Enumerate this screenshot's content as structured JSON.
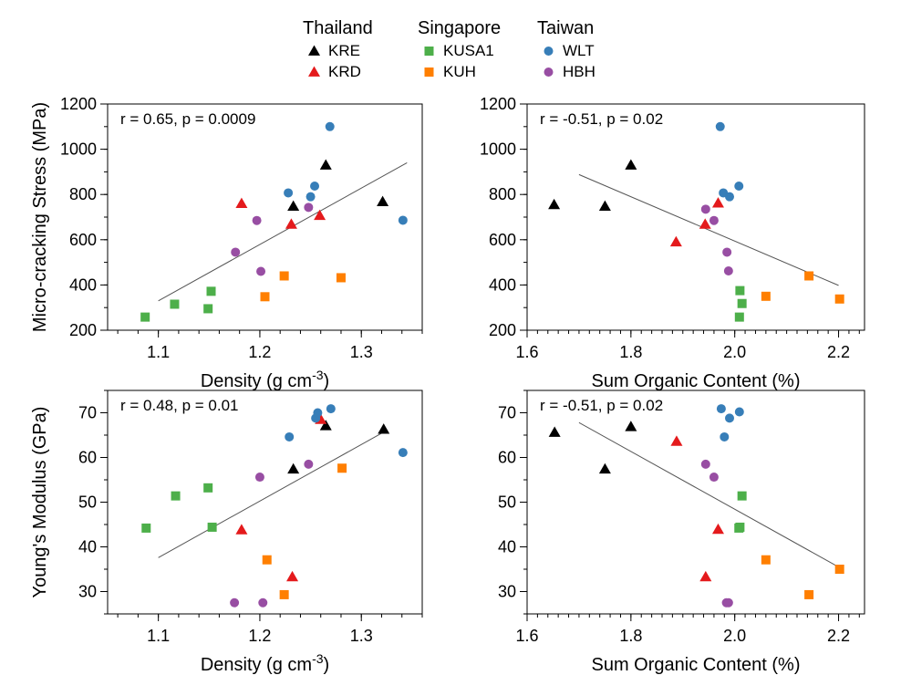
{
  "legend": {
    "groups": [
      {
        "name": "Thailand",
        "items": [
          {
            "label": "KRE",
            "color": "#000000",
            "marker": "triangle"
          },
          {
            "label": "KRD",
            "color": "#e41a1c",
            "marker": "triangle"
          }
        ]
      },
      {
        "name": "Singapore",
        "items": [
          {
            "label": "KUSA1",
            "color": "#4daf4a",
            "marker": "square"
          },
          {
            "label": "KUH",
            "color": "#ff7f00",
            "marker": "square"
          }
        ]
      },
      {
        "name": "Taiwan",
        "items": [
          {
            "label": "WLT",
            "color": "#377eb8",
            "marker": "circle"
          },
          {
            "label": "HBH",
            "color": "#984ea3",
            "marker": "circle"
          }
        ]
      }
    ]
  },
  "chart_data": [
    {
      "type": "scatter",
      "annotation": "r = 0.65, p = 0.0009",
      "xlabel": "Density (g cm-3)",
      "ylabel": "Micro-cracking Stress (MPa)",
      "xlim": [
        1.05,
        1.36
      ],
      "ylim": [
        200,
        1200
      ],
      "xticks": [
        "1.1",
        "1.2",
        "1.3"
      ],
      "yticks": [
        "200",
        "400",
        "600",
        "800",
        "1000",
        "1200"
      ],
      "fit_line": {
        "x": [
          1.1,
          1.345
        ],
        "y": [
          330,
          940
        ]
      },
      "series": [
        {
          "name": "KRE",
          "points": [
            [
              1.233,
              748
            ],
            [
              1.265,
              930
            ],
            [
              1.321,
              768
            ]
          ]
        },
        {
          "name": "KRD",
          "points": [
            [
              1.182,
              760
            ],
            [
              1.231,
              668
            ],
            [
              1.259,
              707
            ]
          ]
        },
        {
          "name": "KUSA1",
          "points": [
            [
              1.087,
              258
            ],
            [
              1.116,
              315
            ],
            [
              1.149,
              295
            ],
            [
              1.152,
              372
            ]
          ]
        },
        {
          "name": "KUH",
          "points": [
            [
              1.205,
              348
            ],
            [
              1.224,
              440
            ],
            [
              1.28,
              432
            ]
          ]
        },
        {
          "name": "WLT",
          "points": [
            [
              1.228,
              807
            ],
            [
              1.25,
              790
            ],
            [
              1.254,
              837
            ],
            [
              1.269,
              1100
            ],
            [
              1.341,
              686
            ]
          ]
        },
        {
          "name": "HBH",
          "points": [
            [
              1.176,
              545
            ],
            [
              1.197,
              685
            ],
            [
              1.201,
              460
            ],
            [
              1.248,
              743
            ]
          ]
        }
      ]
    },
    {
      "type": "scatter",
      "annotation": "r = -0.51, p = 0.02",
      "xlabel": "Sum Organic Content (%)",
      "ylabel": "",
      "xlim": [
        1.6,
        2.25
      ],
      "ylim": [
        200,
        1200
      ],
      "xticks": [
        "1.6",
        "1.8",
        "2.0",
        "2.2"
      ],
      "yticks": [
        "200",
        "400",
        "600",
        "800",
        "1000",
        "1200"
      ],
      "fit_line": {
        "x": [
          1.7,
          2.2
        ],
        "y": [
          888,
          398
        ]
      },
      "series": [
        {
          "name": "KRE",
          "points": [
            [
              1.652,
              755
            ],
            [
              1.75,
              748
            ],
            [
              1.8,
              930
            ]
          ]
        },
        {
          "name": "KRD",
          "points": [
            [
              1.887,
              590
            ],
            [
              1.943,
              668
            ],
            [
              1.968,
              762
            ]
          ]
        },
        {
          "name": "KUSA1",
          "points": [
            [
              2.009,
              258
            ],
            [
              2.01,
              375
            ],
            [
              2.014,
              318
            ]
          ]
        },
        {
          "name": "KUH",
          "points": [
            [
              2.06,
              350
            ],
            [
              2.143,
              440
            ],
            [
              2.202,
              338
            ]
          ]
        },
        {
          "name": "WLT",
          "points": [
            [
              1.972,
              1100
            ],
            [
              1.978,
              807
            ],
            [
              1.99,
              790
            ],
            [
              2.008,
              837
            ]
          ]
        },
        {
          "name": "HBH",
          "points": [
            [
              1.944,
              735
            ],
            [
              1.96,
              685
            ],
            [
              1.985,
              545
            ],
            [
              1.988,
              462
            ]
          ]
        }
      ]
    },
    {
      "type": "scatter",
      "annotation": "r = 0.48, p = 0.01",
      "xlabel": "Density (g cm-3)",
      "ylabel": "Young's Modulus (GPa)",
      "xlim": [
        1.05,
        1.36
      ],
      "ylim": [
        25,
        75
      ],
      "xticks": [
        "1.1",
        "1.2",
        "1.3"
      ],
      "yticks": [
        "30",
        "40",
        "50",
        "60",
        "70"
      ],
      "fit_line": {
        "x": [
          1.1,
          1.323
        ],
        "y": [
          37.6,
          65.8
        ]
      },
      "series": [
        {
          "name": "KRE",
          "points": [
            [
              1.233,
              57.4
            ],
            [
              1.265,
              67.1
            ],
            [
              1.322,
              66.3
            ]
          ]
        },
        {
          "name": "KRD",
          "points": [
            [
              1.182,
              43.8
            ],
            [
              1.232,
              33.3
            ],
            [
              1.26,
              68.5
            ]
          ]
        },
        {
          "name": "KUSA1",
          "points": [
            [
              1.088,
              44.2
            ],
            [
              1.117,
              51.4
            ],
            [
              1.149,
              53.2
            ],
            [
              1.153,
              44.4
            ]
          ]
        },
        {
          "name": "KUH",
          "points": [
            [
              1.207,
              37.1
            ],
            [
              1.224,
              29.3
            ],
            [
              1.281,
              57.6
            ]
          ]
        },
        {
          "name": "WLT",
          "points": [
            [
              1.229,
              64.6
            ],
            [
              1.255,
              68.8
            ],
            [
              1.257,
              70.0
            ],
            [
              1.27,
              70.9
            ],
            [
              1.341,
              61.1
            ]
          ]
        },
        {
          "name": "HBH",
          "points": [
            [
              1.175,
              27.5
            ],
            [
              1.2,
              55.6
            ],
            [
              1.203,
              27.5
            ],
            [
              1.248,
              58.5
            ]
          ]
        }
      ]
    },
    {
      "type": "scatter",
      "annotation": "r = -0.51, p = 0.02",
      "xlabel": "Sum Organic Content (%)",
      "ylabel": "",
      "xlim": [
        1.6,
        2.25
      ],
      "ylim": [
        25,
        75
      ],
      "xticks": [
        "1.6",
        "1.8",
        "2.0",
        "2.2"
      ],
      "yticks": [
        "30",
        "40",
        "50",
        "60",
        "70"
      ],
      "fit_line": {
        "x": [
          1.7,
          2.2
        ],
        "y": [
          67.8,
          35.5
        ]
      },
      "series": [
        {
          "name": "KRE",
          "points": [
            [
              1.653,
              65.6
            ],
            [
              1.75,
              57.4
            ],
            [
              1.8,
              66.9
            ]
          ]
        },
        {
          "name": "KRD",
          "points": [
            [
              1.888,
              63.6
            ],
            [
              1.944,
              33.3
            ],
            [
              1.968,
              43.9
            ]
          ]
        },
        {
          "name": "KUSA1",
          "points": [
            [
              2.008,
              44.2
            ],
            [
              2.01,
              44.4
            ],
            [
              2.014,
              51.4
            ]
          ]
        },
        {
          "name": "KUH",
          "points": [
            [
              2.06,
              37.1
            ],
            [
              2.143,
              29.3
            ],
            [
              2.202,
              35.0
            ]
          ]
        },
        {
          "name": "WLT",
          "points": [
            [
              1.974,
              70.9
            ],
            [
              1.98,
              64.6
            ],
            [
              1.99,
              68.8
            ],
            [
              2.009,
              70.2
            ]
          ]
        },
        {
          "name": "HBH",
          "points": [
            [
              1.944,
              58.5
            ],
            [
              1.96,
              55.6
            ],
            [
              1.984,
              27.5
            ],
            [
              1.988,
              27.5
            ]
          ]
        }
      ]
    }
  ]
}
